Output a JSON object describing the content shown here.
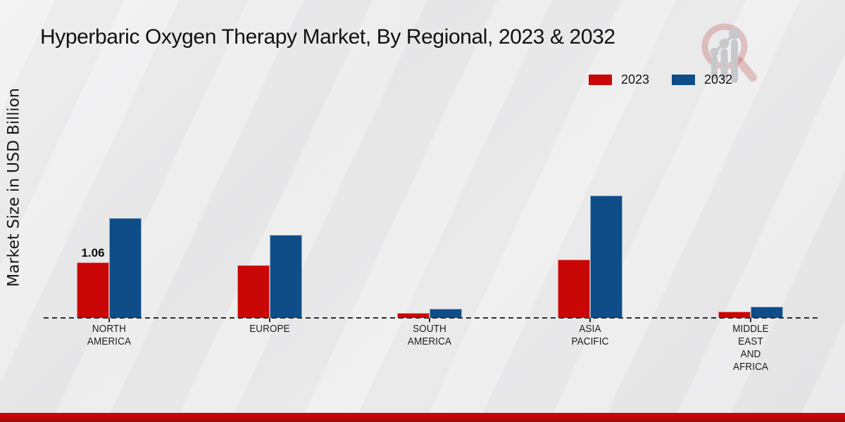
{
  "chart_data": {
    "type": "bar",
    "title": "Hyperbaric Oxygen Therapy Market, By Regional, 2023 & 2032",
    "ylabel": "Market Size in USD Billion",
    "xlabel": "",
    "ylim": [
      0,
      2.5
    ],
    "grid": false,
    "legend_position": "top-right",
    "baseline_style": "dashed",
    "categories": [
      "NORTH AMERICA",
      "EUROPE",
      "SOUTH AMERICA",
      "ASIA PACIFIC",
      "MIDDLE EAST AND AFRICA"
    ],
    "category_lines": [
      [
        "NORTH",
        "AMERICA"
      ],
      [
        "EUROPE"
      ],
      [
        "SOUTH",
        "AMERICA"
      ],
      [
        "ASIA",
        "PACIFIC"
      ],
      [
        "MIDDLE",
        "EAST",
        "AND",
        "AFRICA"
      ]
    ],
    "series": [
      {
        "name": "2023",
        "color": "#c90707",
        "values": [
          1.06,
          1.0,
          0.1,
          1.12,
          0.12
        ],
        "point_labels": [
          "1.06",
          "",
          "",
          "",
          ""
        ]
      },
      {
        "name": "2032",
        "color": "#0e4d88",
        "values": [
          1.91,
          1.59,
          0.18,
          2.34,
          0.21
        ],
        "point_labels": [
          "",
          "",
          "",
          "",
          ""
        ]
      }
    ]
  },
  "colors": {
    "series_2023": "#c90707",
    "series_2032": "#0e4d88",
    "background": "#e9e9ea",
    "axis": "#2d2d2d",
    "footer_band": "#c10707"
  },
  "watermark": {
    "name": "magnifier-bar-chart-logo"
  }
}
